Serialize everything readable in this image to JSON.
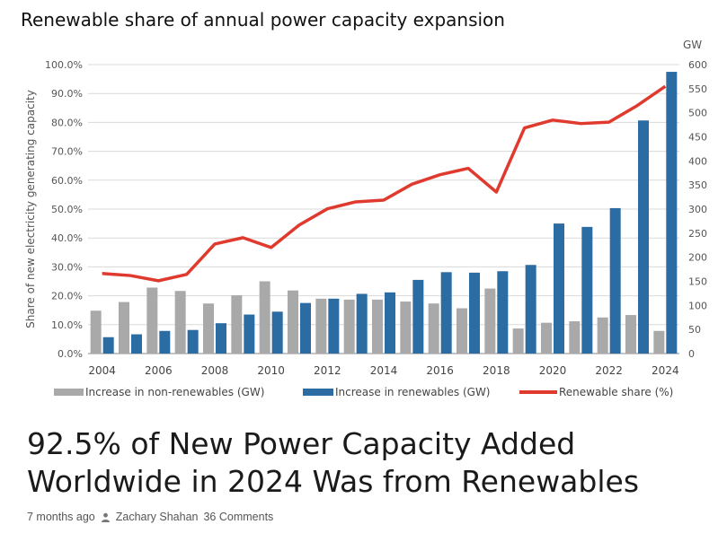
{
  "chart_data": {
    "type": "bar",
    "title": "Renewable share of annual power capacity expansion",
    "ylabel": "Share of new electricity generating capacity",
    "y2label": "GW",
    "ylim": [
      0,
      100
    ],
    "y2lim": [
      0,
      600
    ],
    "yticks": [
      "0.0%",
      "10.0%",
      "20.0%",
      "30.0%",
      "40.0%",
      "50.0%",
      "60.0%",
      "70.0%",
      "80.0%",
      "90.0%",
      "100.0%"
    ],
    "y2ticks": [
      "0",
      "50",
      "100",
      "150",
      "200",
      "250",
      "300",
      "350",
      "400",
      "450",
      "500",
      "550",
      "600"
    ],
    "categories": [
      "2004",
      "2005",
      "2006",
      "2007",
      "2008",
      "2009",
      "2010",
      "2011",
      "2012",
      "2013",
      "2014",
      "2015",
      "2016",
      "2017",
      "2018",
      "2019",
      "2020",
      "2021",
      "2022",
      "2023",
      "2024"
    ],
    "xtick_labels": [
      "2004",
      "2006",
      "2008",
      "2010",
      "2012",
      "2014",
      "2016",
      "2018",
      "2020",
      "2022",
      "2024"
    ],
    "series": [
      {
        "name": "Increase in non-renewables (GW)",
        "axis": "right",
        "color": "#a9a9a9",
        "values": [
          89,
          107,
          137,
          130,
          104,
          121,
          150,
          131,
          114,
          112,
          112,
          108,
          104,
          94,
          135,
          52,
          64,
          67,
          75,
          80,
          47
        ]
      },
      {
        "name": "Increase in renewables (GW)",
        "axis": "right",
        "color": "#2b6ca3",
        "values": [
          34,
          40,
          47,
          49,
          63,
          81,
          87,
          105,
          114,
          124,
          127,
          153,
          169,
          168,
          171,
          184,
          270,
          263,
          302,
          484,
          585
        ]
      },
      {
        "name": "Renewable share (%)",
        "axis": "left",
        "type": "line",
        "color": "#e03a2f",
        "values": [
          27.7,
          27.0,
          25.2,
          27.4,
          37.9,
          40.1,
          36.7,
          44.5,
          50.1,
          52.5,
          53.1,
          58.6,
          61.9,
          64.1,
          55.9,
          78.1,
          80.8,
          79.6,
          80.1,
          85.8,
          92.5
        ]
      }
    ]
  },
  "article": {
    "headline": "92.5% of New Power Capacity Added Worldwide in 2024 Was from Renewables",
    "time_ago": "7 months ago",
    "author": "Zachary Shahan",
    "comments": "36 Comments",
    "author_icon": "user-icon"
  }
}
